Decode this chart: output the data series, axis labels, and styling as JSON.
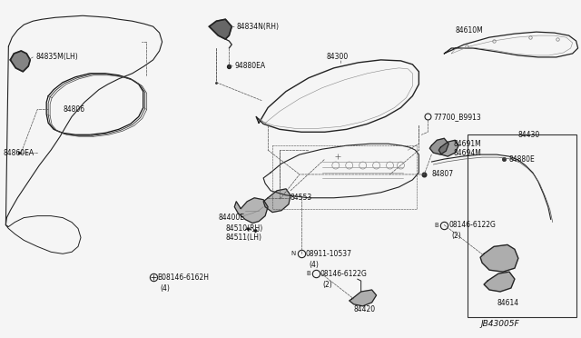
{
  "fig_width": 6.4,
  "fig_height": 3.72,
  "dpi": 100,
  "bg_color": "#f5f5f5",
  "line_color": "#222222",
  "label_color": "#111111",
  "dash_color": "#555555",
  "parts": {
    "84835M_LH": "84835M(LH)",
    "84860EA": "84860EA",
    "84806": "84806",
    "84834N_RH": "84834N(RH)",
    "94880EA": "94880EA",
    "84300": "84300",
    "84610M": "84610M",
    "77700_B9913": "77700_B9913",
    "84691M": "84691M",
    "84694M": "84694M",
    "84430": "84430",
    "84880E": "84880E",
    "84807": "84807",
    "84553": "84553",
    "84400E": "84400E",
    "84510_RH": "84510(RH)",
    "84511_LH": "84511(LH)",
    "N08911": "N08911-10537",
    "N08911_qty": "(4)",
    "B08146_6162H": "B08146-6162H",
    "B08146_6162H_qty": "(4)",
    "B08146_6122G_c": "B08146-6122G",
    "B08146_6122G_c_qty": "(2)",
    "84420": "84420",
    "B08146_6122G_r": "B08146-6122G",
    "B08146_6122G_r_qty": "(2)",
    "84614": "84614",
    "JB43005F": "JB43005F"
  }
}
